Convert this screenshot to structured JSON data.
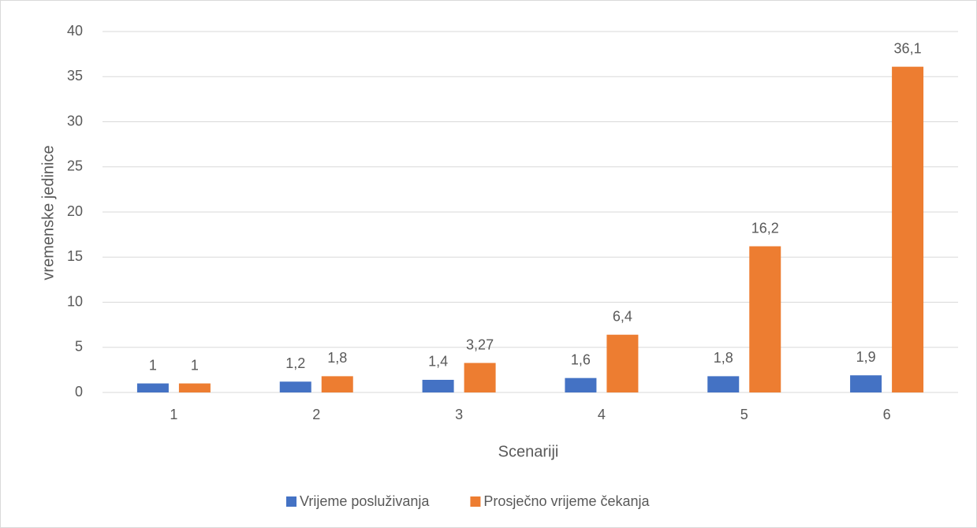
{
  "chart_data": {
    "type": "bar",
    "x_label": "Scenariji",
    "y_label": "vremenske jedinice",
    "categories": [
      "1",
      "2",
      "3",
      "4",
      "5",
      "6"
    ],
    "series": [
      {
        "name": "Vrijeme posluživanja",
        "color": "#4472c4",
        "values": [
          1,
          1.2,
          1.4,
          1.6,
          1.8,
          1.9
        ],
        "value_labels": [
          "1",
          "1,2",
          "1,4",
          "1,6",
          "1,8",
          "1,9"
        ]
      },
      {
        "name": "Prosječno vrijeme čekanja",
        "color": "#ed7d31",
        "values": [
          1,
          1.8,
          3.27,
          6.4,
          16.2,
          36.1
        ],
        "value_labels": [
          "1",
          "1,8",
          "3,27",
          "6,4",
          "16,2",
          "36,1"
        ]
      }
    ],
    "ylim": [
      0,
      40
    ],
    "yticks": [
      0,
      5,
      10,
      15,
      20,
      25,
      30,
      35,
      40
    ],
    "grid": true,
    "legend": "bottom"
  }
}
